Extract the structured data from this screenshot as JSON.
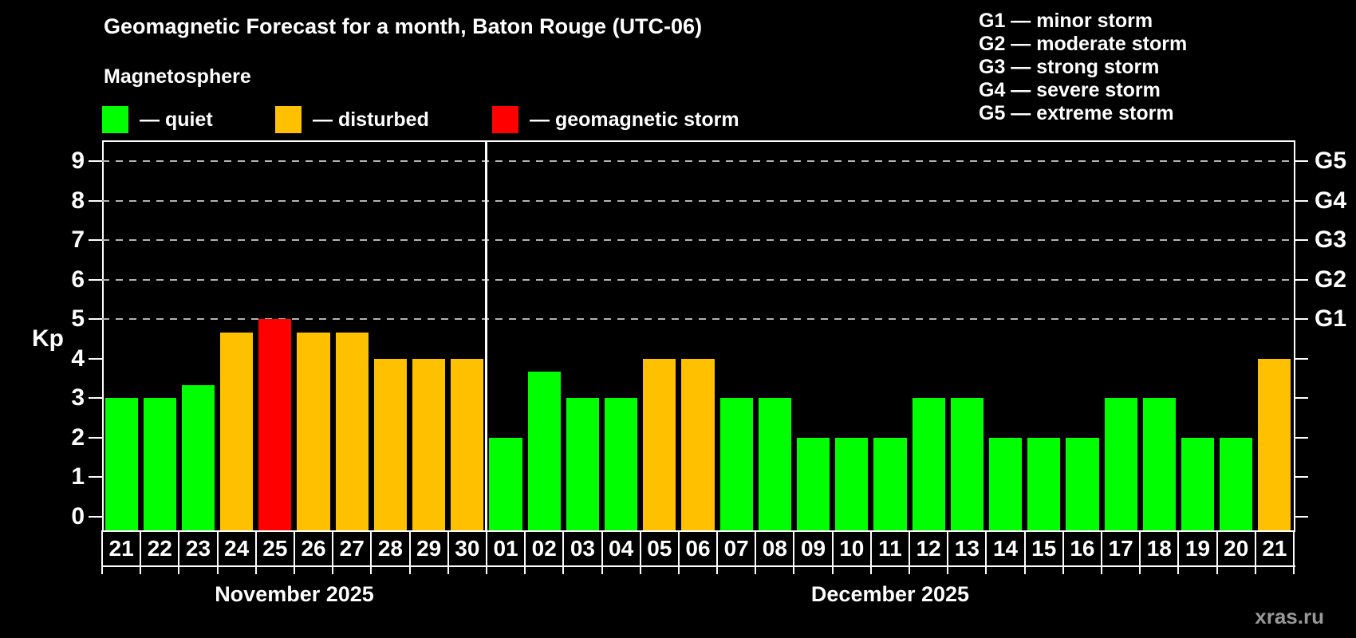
{
  "header": {
    "title": "Geomagnetic Forecast for a month, Baton Rouge (UTC-06)",
    "subtitle": "Magnetosphere"
  },
  "legend": {
    "items": [
      {
        "label": "— quiet",
        "status": "quiet",
        "color": "#00ff00"
      },
      {
        "label": "— disturbed",
        "status": "disturbed",
        "color": "#ffc000"
      },
      {
        "label": "— geomagnetic storm",
        "status": "storm",
        "color": "#ff0000"
      }
    ]
  },
  "g_legend": {
    "items": [
      "G1 — minor storm",
      "G2 — moderate storm",
      "G3 — strong storm",
      "G4 — severe storm",
      "G5 — extreme storm"
    ]
  },
  "watermark": "xras.ru",
  "chart_data": {
    "type": "bar",
    "title": "Geomagnetic Forecast for a month, Baton Rouge (UTC-06)",
    "ylabel": "Kp",
    "ylim": [
      0,
      9.6
    ],
    "y_ticks": [
      "0",
      "1",
      "2",
      "3",
      "4",
      "5",
      "6",
      "7",
      "8",
      "9"
    ],
    "gridlines_at_kp": [
      5,
      6,
      7,
      8,
      9
    ],
    "right_axis": [
      {
        "label": "G1",
        "kp": 5
      },
      {
        "label": "G2",
        "kp": 6
      },
      {
        "label": "G3",
        "kp": 7
      },
      {
        "label": "G4",
        "kp": 8
      },
      {
        "label": "G5",
        "kp": 9
      }
    ],
    "status_colors": {
      "quiet": "#00ff00",
      "disturbed": "#ffc000",
      "storm": "#ff0000"
    },
    "months": [
      {
        "name": "November 2025",
        "days": [
          {
            "day": "21",
            "kp": 3,
            "status": "quiet"
          },
          {
            "day": "22",
            "kp": 3,
            "status": "quiet"
          },
          {
            "day": "23",
            "kp": 3.33,
            "status": "quiet"
          },
          {
            "day": "24",
            "kp": 4.67,
            "status": "disturbed"
          },
          {
            "day": "25",
            "kp": 5,
            "status": "storm"
          },
          {
            "day": "26",
            "kp": 4.67,
            "status": "disturbed"
          },
          {
            "day": "27",
            "kp": 4.67,
            "status": "disturbed"
          },
          {
            "day": "28",
            "kp": 4,
            "status": "disturbed"
          },
          {
            "day": "29",
            "kp": 4,
            "status": "disturbed"
          },
          {
            "day": "30",
            "kp": 4,
            "status": "disturbed"
          }
        ]
      },
      {
        "name": "December 2025",
        "days": [
          {
            "day": "01",
            "kp": 2,
            "status": "quiet"
          },
          {
            "day": "02",
            "kp": 3.67,
            "status": "quiet"
          },
          {
            "day": "03",
            "kp": 3,
            "status": "quiet"
          },
          {
            "day": "04",
            "kp": 3,
            "status": "quiet"
          },
          {
            "day": "05",
            "kp": 4,
            "status": "disturbed"
          },
          {
            "day": "06",
            "kp": 4,
            "status": "disturbed"
          },
          {
            "day": "07",
            "kp": 3,
            "status": "quiet"
          },
          {
            "day": "08",
            "kp": 3,
            "status": "quiet"
          },
          {
            "day": "09",
            "kp": 2,
            "status": "quiet"
          },
          {
            "day": "10",
            "kp": 2,
            "status": "quiet"
          },
          {
            "day": "11",
            "kp": 2,
            "status": "quiet"
          },
          {
            "day": "12",
            "kp": 3,
            "status": "quiet"
          },
          {
            "day": "13",
            "kp": 3,
            "status": "quiet"
          },
          {
            "day": "14",
            "kp": 2,
            "status": "quiet"
          },
          {
            "day": "15",
            "kp": 2,
            "status": "quiet"
          },
          {
            "day": "16",
            "kp": 2,
            "status": "quiet"
          },
          {
            "day": "17",
            "kp": 3,
            "status": "quiet"
          },
          {
            "day": "18",
            "kp": 3,
            "status": "quiet"
          },
          {
            "day": "19",
            "kp": 2,
            "status": "quiet"
          },
          {
            "day": "20",
            "kp": 2,
            "status": "quiet"
          },
          {
            "day": "21",
            "kp": 4,
            "status": "disturbed"
          }
        ]
      }
    ]
  }
}
